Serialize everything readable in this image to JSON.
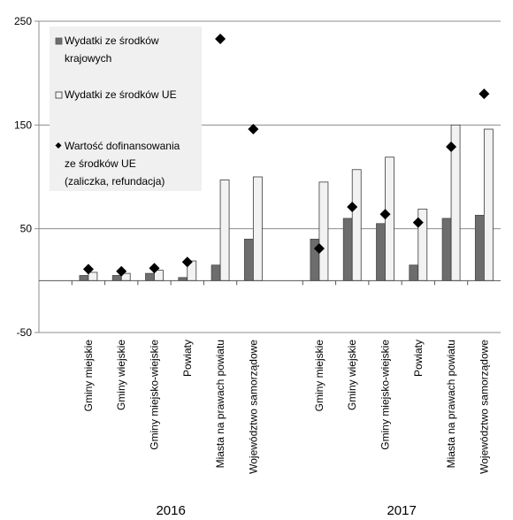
{
  "chart_data": {
    "type": "bar",
    "ylim": [
      -50,
      250
    ],
    "yticks": [
      "250",
      "150",
      "50",
      "-50"
    ],
    "ytick_values": [
      250,
      150,
      50,
      -50
    ],
    "grid": true,
    "legend_position": "top-left",
    "groups": [
      {
        "label": "2016",
        "categories": [
          "Gminy miejskie",
          "Gminy wiejskie",
          "Gminy miejsko-wiejskie",
          "Powiaty",
          "Miasta na prawach powiatu",
          "Województwo samorządowe"
        ]
      },
      {
        "label": "2017",
        "categories": [
          "Gminy miejskie",
          "Gminy wiejskie",
          "Gminy miejsko-wiejskie",
          "Powiaty",
          "Miasta na prawach powiatu",
          "Województwo samorządowe"
        ]
      }
    ],
    "series": [
      {
        "name": "Wydatki ze środków krajowych",
        "name_lines": [
          "Wydatki ze środków",
          "krajowych"
        ],
        "kind": "bar",
        "color": "#6d6d6d",
        "values": [
          5,
          5,
          7,
          3,
          15,
          40,
          40,
          60,
          55,
          15,
          60,
          63
        ]
      },
      {
        "name": "Wydatki ze środków UE",
        "name_lines": [
          "Wydatki ze środków UE"
        ],
        "kind": "bar",
        "color": "#f2f2f2",
        "values": [
          8,
          7,
          10,
          19,
          97,
          100,
          95,
          107,
          119,
          69,
          150,
          146
        ]
      },
      {
        "name": "Wartość dofinansowania ze środków UE (zaliczka, refundacja)",
        "name_lines": [
          "Wartość dofinansowania",
          "ze środków UE",
          "(zaliczka, refundacja)"
        ],
        "kind": "marker",
        "color": "#000000",
        "values": [
          11,
          9,
          12,
          18,
          233,
          146,
          31,
          71,
          64,
          56,
          129,
          180
        ]
      }
    ]
  }
}
